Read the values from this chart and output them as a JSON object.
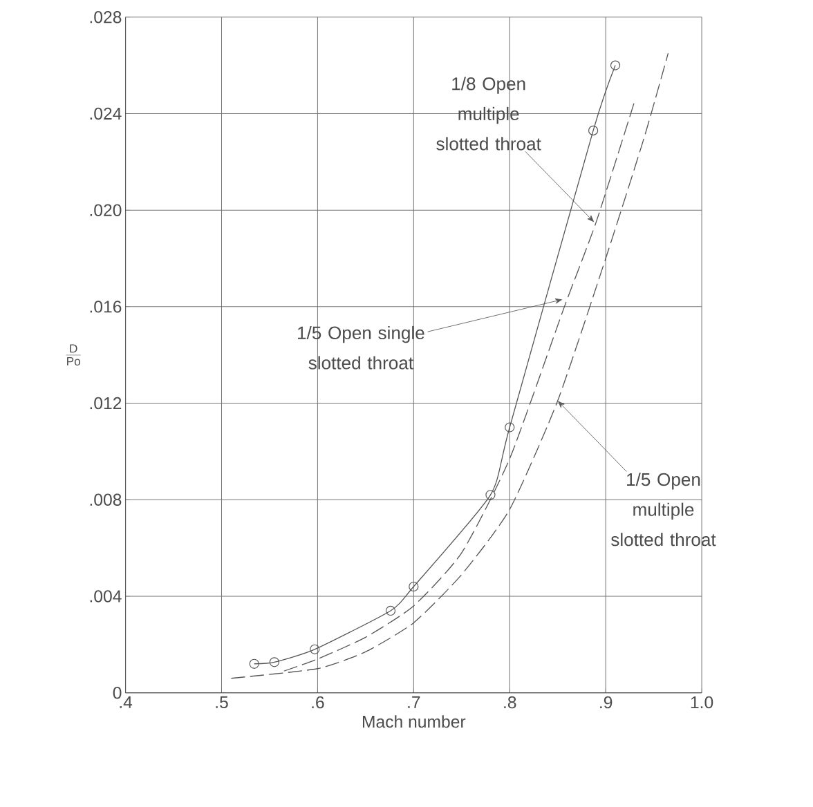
{
  "chart_data": {
    "type": "line",
    "xlabel": "Mach number",
    "ylabel": "\\frac{\\mathrm{D}}{\\mathrm{Po}}",
    "xlim": [
      0.4,
      1.0
    ],
    "ylim": [
      0,
      0.028
    ],
    "xticks": [
      {
        "value": 0.4,
        "label": ".4"
      },
      {
        "value": 0.5,
        "label": ".5"
      },
      {
        "value": 0.6,
        "label": ".6"
      },
      {
        "value": 0.7,
        "label": ".7"
      },
      {
        "value": 0.8,
        "label": ".8"
      },
      {
        "value": 0.9,
        "label": ".9"
      },
      {
        "value": 1.0,
        "label": "1.0"
      }
    ],
    "yticks": [
      {
        "value": 0,
        "label": "0"
      },
      {
        "value": 0.004,
        "label": ".004"
      },
      {
        "value": 0.008,
        "label": ".008"
      },
      {
        "value": 0.012,
        "label": ".012"
      },
      {
        "value": 0.016,
        "label": ".016"
      },
      {
        "value": 0.02,
        "label": ".020"
      },
      {
        "value": 0.024,
        "label": ".024"
      },
      {
        "value": 0.028,
        "label": ".028"
      }
    ],
    "grid": true,
    "series": [
      {
        "color": "#555555",
        "marker": "circle",
        "line_style": "solid",
        "x": [
          0.534,
          0.555,
          0.597,
          0.676,
          0.7,
          0.78,
          0.8,
          0.887,
          0.91
        ],
        "values": [
          0.0012,
          0.00127,
          0.0018,
          0.0034,
          0.0044,
          0.0082,
          0.011,
          0.0233,
          0.026
        ]
      },
      {
        "color": "#555555",
        "marker": "none",
        "line_style": "dashed",
        "x": [
          0.565,
          0.6,
          0.65,
          0.7,
          0.75,
          0.8,
          0.857,
          0.89,
          0.93
        ],
        "values": [
          0.0009,
          0.0014,
          0.0023,
          0.0036,
          0.0058,
          0.0097,
          0.016,
          0.0195,
          0.0245
        ]
      },
      {
        "color": "#555555",
        "marker": "none",
        "line_style": "dashed",
        "x": [
          0.51,
          0.6,
          0.65,
          0.7,
          0.75,
          0.8,
          0.85,
          0.9,
          0.94,
          0.965
        ],
        "values": [
          0.0006,
          0.001,
          0.0017,
          0.0029,
          0.0049,
          0.0076,
          0.0121,
          0.018,
          0.023,
          0.0265
        ]
      }
    ],
    "annotations": [
      {
        "text": "1/8 Open multiple slotted throat",
        "x": 0.888,
        "y": 0.0195
      },
      "1/5 Open single slotted throat",
      {
        "text": "1/5 Open multiple slotted throat",
        "x": 0.85,
        "y": 0.0121
      }
    ]
  }
}
